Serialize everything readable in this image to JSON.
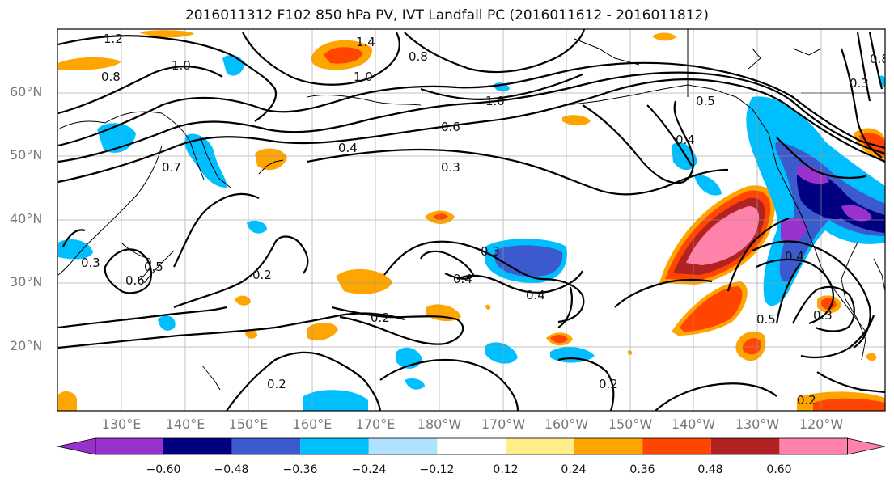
{
  "title": "2016011312 F102 850 hPa PV, IVT Landfall PC (2016011612 - 2016011812)",
  "lat_labels": [
    "60°N",
    "50°N",
    "40°N",
    "30°N",
    "20°N"
  ],
  "lon_labels": [
    "130°E",
    "140°E",
    "150°E",
    "160°E",
    "170°E",
    "180°W",
    "170°W",
    "160°W",
    "150°W",
    "140°W",
    "130°W",
    "120°W"
  ],
  "colorbar": {
    "ticks": [
      "−0.60",
      "−0.48",
      "−0.36",
      "−0.24",
      "−0.12",
      "0.12",
      "0.24",
      "0.36",
      "0.48",
      "0.60"
    ],
    "colors": [
      "#9932cc",
      "#000080",
      "#3a5acd",
      "#00bfff",
      "#b0e2ff",
      "#ffffff",
      "#ffec8b",
      "#ffa500",
      "#ff4500",
      "#b22222",
      "#ff82ab"
    ]
  },
  "contour_labels": [
    "1.2",
    "1.0",
    "0.8",
    "1.4",
    "1.0",
    "0.8",
    "1.0",
    "0.6",
    "0.4",
    "0.3",
    "0.4",
    "0.5",
    "0.7",
    "0.2",
    "0.2",
    "0.3",
    "0.4",
    "0.3",
    "0.4",
    "0.2",
    "0.2",
    "0.4",
    "0.5",
    "0.3",
    "0.2",
    "0.8",
    "0.6",
    "0.5",
    "0.3"
  ]
}
